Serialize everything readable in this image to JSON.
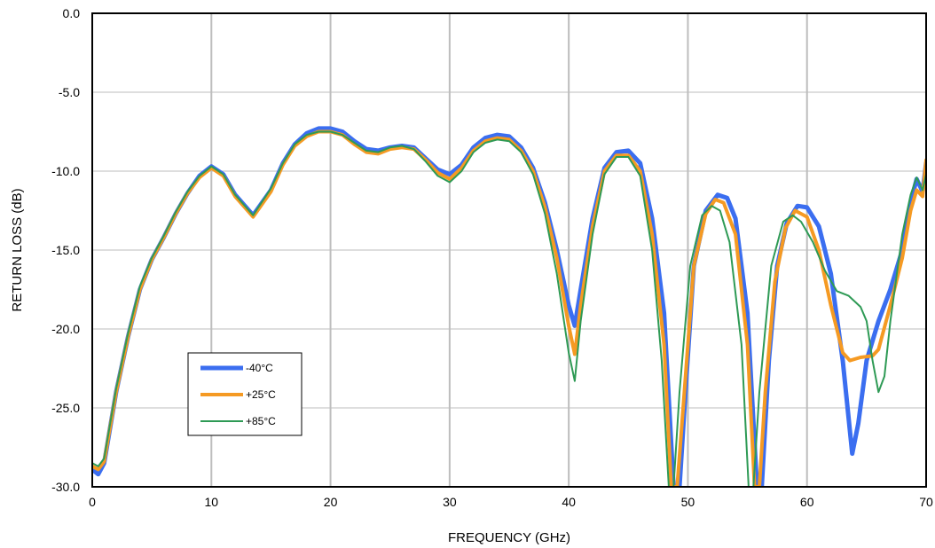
{
  "chart_data": {
    "type": "line",
    "title": "",
    "xlabel": "FREQUENCY (GHz)",
    "ylabel": "RETURN LOSS (dB)",
    "xlim": [
      0,
      70
    ],
    "ylim": [
      -30,
      0
    ],
    "xticks": [
      0,
      10,
      20,
      30,
      40,
      50,
      60,
      70
    ],
    "xtick_labels": [
      "0",
      "10",
      "20",
      "30",
      "40",
      "50",
      "60",
      "70"
    ],
    "yticks": [
      0,
      -5,
      -10,
      -15,
      -20,
      -25,
      -30
    ],
    "ytick_labels": [
      "0.0",
      "-5.0",
      "-10.0",
      "-15.0",
      "-20.0",
      "-25.0",
      "-30.0"
    ],
    "grid": {
      "vertical": true,
      "horizontal": true
    },
    "legend_position": "lower-left",
    "series": [
      {
        "name": "-40°C",
        "color": "#3b6ef0",
        "points": [
          [
            0,
            -28.9
          ],
          [
            0.5,
            -29.2
          ],
          [
            1,
            -28.5
          ],
          [
            2,
            -24
          ],
          [
            3,
            -20.5
          ],
          [
            4,
            -17.5
          ],
          [
            5,
            -15.6
          ],
          [
            6,
            -14.2
          ],
          [
            7,
            -12.7
          ],
          [
            8,
            -11.4
          ],
          [
            9,
            -10.3
          ],
          [
            10,
            -9.7
          ],
          [
            11,
            -10.2
          ],
          [
            12,
            -11.5
          ],
          [
            13.5,
            -12.8
          ],
          [
            15,
            -11.2
          ],
          [
            16,
            -9.5
          ],
          [
            17,
            -8.3
          ],
          [
            18,
            -7.6
          ],
          [
            19,
            -7.3
          ],
          [
            20,
            -7.3
          ],
          [
            21,
            -7.5
          ],
          [
            22,
            -8.1
          ],
          [
            23,
            -8.6
          ],
          [
            24,
            -8.7
          ],
          [
            25,
            -8.5
          ],
          [
            26,
            -8.4
          ],
          [
            27,
            -8.5
          ],
          [
            28,
            -9.2
          ],
          [
            29,
            -9.9
          ],
          [
            30,
            -10.2
          ],
          [
            31,
            -9.6
          ],
          [
            32,
            -8.5
          ],
          [
            33,
            -7.9
          ],
          [
            34,
            -7.7
          ],
          [
            35,
            -7.8
          ],
          [
            36,
            -8.5
          ],
          [
            37,
            -9.8
          ],
          [
            38,
            -12
          ],
          [
            39,
            -15
          ],
          [
            40,
            -18.5
          ],
          [
            40.5,
            -19.8
          ],
          [
            41,
            -17.5
          ],
          [
            42,
            -13
          ],
          [
            43,
            -9.8
          ],
          [
            44,
            -8.8
          ],
          [
            45,
            -8.7
          ],
          [
            46,
            -9.5
          ],
          [
            47,
            -13
          ],
          [
            48,
            -19
          ],
          [
            48.8,
            -30
          ],
          [
            49.3,
            -30
          ],
          [
            49.8,
            -24
          ],
          [
            50.5,
            -16
          ],
          [
            51.5,
            -12.5
          ],
          [
            52.5,
            -11.5
          ],
          [
            53.3,
            -11.7
          ],
          [
            54,
            -13
          ],
          [
            55,
            -19
          ],
          [
            55.8,
            -30
          ],
          [
            56.2,
            -30
          ],
          [
            56.8,
            -22
          ],
          [
            57.5,
            -16
          ],
          [
            58.3,
            -13.3
          ],
          [
            59.2,
            -12.2
          ],
          [
            60,
            -12.3
          ],
          [
            61,
            -13.5
          ],
          [
            62,
            -16.5
          ],
          [
            63,
            -22
          ],
          [
            63.8,
            -27.9
          ],
          [
            64.3,
            -26
          ],
          [
            65,
            -22
          ],
          [
            66,
            -19.5
          ],
          [
            67,
            -17.5
          ],
          [
            68,
            -15
          ],
          [
            68.7,
            -12
          ],
          [
            69.2,
            -10.5
          ],
          [
            69.7,
            -11.3
          ],
          [
            70,
            -9.5
          ]
        ]
      },
      {
        "name": "+25°C",
        "color": "#f59a23",
        "points": [
          [
            0,
            -28.7
          ],
          [
            0.5,
            -28.9
          ],
          [
            1,
            -28.4
          ],
          [
            2,
            -24
          ],
          [
            3,
            -20.5
          ],
          [
            4,
            -17.5
          ],
          [
            5,
            -15.6
          ],
          [
            6,
            -14.2
          ],
          [
            7,
            -12.7
          ],
          [
            8,
            -11.4
          ],
          [
            9,
            -10.4
          ],
          [
            10,
            -9.8
          ],
          [
            11,
            -10.3
          ],
          [
            12,
            -11.6
          ],
          [
            13.5,
            -12.9
          ],
          [
            15,
            -11.3
          ],
          [
            16,
            -9.6
          ],
          [
            17,
            -8.4
          ],
          [
            18,
            -7.8
          ],
          [
            19,
            -7.5
          ],
          [
            20,
            -7.5
          ],
          [
            21,
            -7.7
          ],
          [
            22,
            -8.3
          ],
          [
            23,
            -8.8
          ],
          [
            24,
            -8.9
          ],
          [
            25,
            -8.6
          ],
          [
            26,
            -8.5
          ],
          [
            27,
            -8.6
          ],
          [
            28,
            -9.3
          ],
          [
            29,
            -10.1
          ],
          [
            30,
            -10.5
          ],
          [
            31,
            -9.8
          ],
          [
            32,
            -8.7
          ],
          [
            33,
            -8.1
          ],
          [
            34,
            -7.9
          ],
          [
            35,
            -8.0
          ],
          [
            36,
            -8.7
          ],
          [
            37,
            -10
          ],
          [
            38,
            -12.3
          ],
          [
            39,
            -15.5
          ],
          [
            40,
            -19.8
          ],
          [
            40.5,
            -21.6
          ],
          [
            41,
            -18.5
          ],
          [
            42,
            -13.5
          ],
          [
            43,
            -10
          ],
          [
            44,
            -9
          ],
          [
            45,
            -9
          ],
          [
            46,
            -10
          ],
          [
            47,
            -14
          ],
          [
            48,
            -21
          ],
          [
            48.6,
            -30
          ],
          [
            49.1,
            -30
          ],
          [
            49.6,
            -25
          ],
          [
            50.5,
            -16
          ],
          [
            51.5,
            -12.7
          ],
          [
            52.3,
            -11.8
          ],
          [
            53,
            -12
          ],
          [
            54,
            -14
          ],
          [
            55,
            -21
          ],
          [
            55.6,
            -30
          ],
          [
            56,
            -30
          ],
          [
            56.5,
            -24
          ],
          [
            57.3,
            -17
          ],
          [
            58.2,
            -13.6
          ],
          [
            59,
            -12.5
          ],
          [
            60,
            -12.9
          ],
          [
            61,
            -15
          ],
          [
            62,
            -18.5
          ],
          [
            63,
            -21.5
          ],
          [
            63.6,
            -22
          ],
          [
            64.5,
            -21.8
          ],
          [
            65.5,
            -21.7
          ],
          [
            66,
            -21.3
          ],
          [
            67,
            -18.5
          ],
          [
            68,
            -15.5
          ],
          [
            68.7,
            -12.5
          ],
          [
            69.2,
            -11.2
          ],
          [
            69.7,
            -11.6
          ],
          [
            70,
            -9.3
          ]
        ]
      },
      {
        "name": "+85°C",
        "color": "#2e9a55",
        "points": [
          [
            0,
            -28.5
          ],
          [
            0.5,
            -28.7
          ],
          [
            1,
            -28.2
          ],
          [
            2,
            -23.8
          ],
          [
            3,
            -20.3
          ],
          [
            4,
            -17.3
          ],
          [
            5,
            -15.5
          ],
          [
            6,
            -14.1
          ],
          [
            7,
            -12.6
          ],
          [
            8,
            -11.3
          ],
          [
            9,
            -10.3
          ],
          [
            10,
            -9.7
          ],
          [
            11,
            -10.2
          ],
          [
            12,
            -11.5
          ],
          [
            13.5,
            -12.8
          ],
          [
            15,
            -11.1
          ],
          [
            16,
            -9.5
          ],
          [
            17,
            -8.3
          ],
          [
            18,
            -7.7
          ],
          [
            19,
            -7.5
          ],
          [
            20,
            -7.5
          ],
          [
            21,
            -7.7
          ],
          [
            22,
            -8.2
          ],
          [
            23,
            -8.7
          ],
          [
            24,
            -8.8
          ],
          [
            25,
            -8.5
          ],
          [
            26,
            -8.4
          ],
          [
            27,
            -8.6
          ],
          [
            28,
            -9.4
          ],
          [
            29,
            -10.3
          ],
          [
            30,
            -10.7
          ],
          [
            31,
            -10
          ],
          [
            32,
            -8.8
          ],
          [
            33,
            -8.2
          ],
          [
            34,
            -8.0
          ],
          [
            35,
            -8.1
          ],
          [
            36,
            -8.8
          ],
          [
            37,
            -10.2
          ],
          [
            38,
            -12.7
          ],
          [
            39,
            -16.5
          ],
          [
            40,
            -21.5
          ],
          [
            40.5,
            -23.3
          ],
          [
            41,
            -19.5
          ],
          [
            42,
            -14
          ],
          [
            43,
            -10.2
          ],
          [
            44,
            -9.1
          ],
          [
            45,
            -9.1
          ],
          [
            46,
            -10.3
          ],
          [
            47,
            -15
          ],
          [
            47.8,
            -22
          ],
          [
            48.4,
            -30
          ],
          [
            48.8,
            -30
          ],
          [
            49.3,
            -24
          ],
          [
            50.2,
            -16
          ],
          [
            51.2,
            -12.8
          ],
          [
            52,
            -12.2
          ],
          [
            52.7,
            -12.5
          ],
          [
            53.5,
            -14.5
          ],
          [
            54.5,
            -21
          ],
          [
            55.1,
            -30
          ],
          [
            55.5,
            -30
          ],
          [
            56,
            -24
          ],
          [
            57,
            -16
          ],
          [
            58,
            -13.2
          ],
          [
            58.8,
            -12.8
          ],
          [
            59.5,
            -13.2
          ],
          [
            60.5,
            -14.5
          ],
          [
            61.5,
            -16.3
          ],
          [
            62.5,
            -17.6
          ],
          [
            63.5,
            -17.9
          ],
          [
            64.5,
            -18.6
          ],
          [
            65,
            -19.5
          ],
          [
            65.5,
            -22
          ],
          [
            66,
            -24
          ],
          [
            66.5,
            -23
          ],
          [
            67,
            -19.5
          ],
          [
            68,
            -14
          ],
          [
            68.7,
            -11.5
          ],
          [
            69.2,
            -10.4
          ],
          [
            69.7,
            -11.2
          ],
          [
            70,
            -10.2
          ]
        ]
      }
    ]
  }
}
